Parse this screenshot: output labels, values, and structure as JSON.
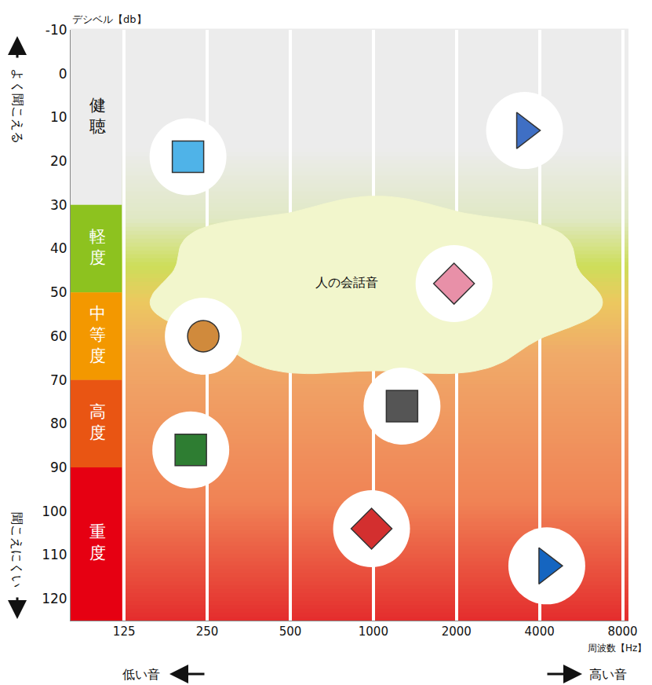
{
  "chart_data": {
    "type": "scatter",
    "xlabel": "周波数【Hz】",
    "ylabel": "デシベル【db】",
    "log": "x",
    "grid": true,
    "xlim": [
      80,
      8400
    ],
    "xticks": [
      125,
      250,
      500,
      1000,
      2000,
      4000,
      8000
    ],
    "ylim": [
      125,
      -10
    ],
    "yticks": [
      -10,
      0,
      10,
      20,
      30,
      40,
      50,
      60,
      70,
      80,
      90,
      100,
      110,
      120
    ],
    "levels": [
      {
        "label": "健聴",
        "from": -10,
        "to": 30,
        "color": "#ececec"
      },
      {
        "label": "軽度",
        "from": 30,
        "to": 50,
        "color": "#8dc21f"
      },
      {
        "label": "中等度",
        "from": 50,
        "to": 70,
        "color": "#f39800"
      },
      {
        "label": "高度",
        "from": 70,
        "to": 90,
        "color": "#e95513"
      },
      {
        "label": "重度",
        "from": 90,
        "to": 125,
        "color": "#e60012"
      }
    ],
    "regions": [
      {
        "label": "人の会話音",
        "x": [
          150,
          7000
        ],
        "y": [
          28,
          70
        ],
        "label_x": 800,
        "label_y": 48,
        "color": "#f2f6cc"
      }
    ],
    "icons": [
      {
        "x": 213,
        "y": 19,
        "marker": "square",
        "color": "#4fb3e8"
      },
      {
        "x": 3530,
        "y": 13,
        "marker": "triangle-right",
        "color": "#3f6fc4"
      },
      {
        "x": 1960,
        "y": 48,
        "marker": "diamond",
        "color": "#e890a8"
      },
      {
        "x": 242,
        "y": 60,
        "marker": "circle",
        "color": "#d08a3c"
      },
      {
        "x": 1270,
        "y": 76,
        "marker": "square",
        "color": "#555555"
      },
      {
        "x": 218,
        "y": 86,
        "marker": "square",
        "color": "#2e7d32"
      },
      {
        "x": 985,
        "y": 104,
        "marker": "diamond",
        "color": "#d32f2f"
      },
      {
        "x": 4250,
        "y": 112.5,
        "marker": "triangle-right",
        "color": "#1565c0"
      }
    ],
    "notes": {
      "up": "よく聞こえる",
      "down": "聞こえにくい",
      "left": "低い音",
      "right": "高い音"
    }
  }
}
